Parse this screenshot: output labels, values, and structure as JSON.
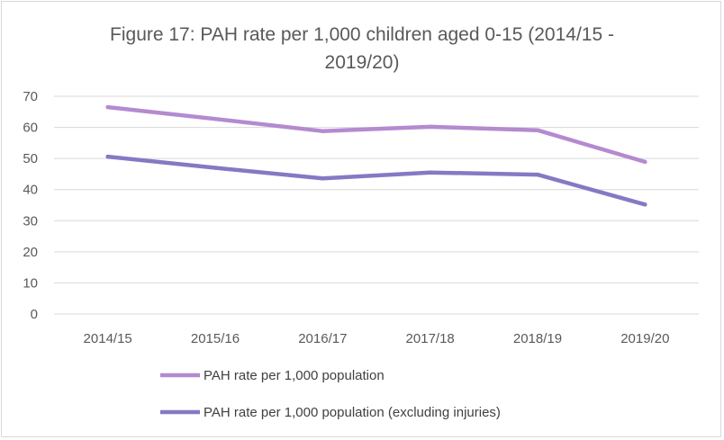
{
  "chart_data": {
    "type": "line",
    "title_line1": "Figure 17: PAH rate per 1,000 children aged 0-15 (2014/15 -",
    "title_line2": "2019/20)",
    "categories": [
      "2014/15",
      "2015/16",
      "2016/17",
      "2017/18",
      "2018/19",
      "2019/20"
    ],
    "ylim": [
      0,
      70
    ],
    "yticks": [
      0,
      10,
      20,
      30,
      40,
      50,
      60,
      70
    ],
    "grid": true,
    "legend_position": "bottom",
    "series": [
      {
        "name": "PAH rate per 1,000 population",
        "color": "#b48ad0",
        "values": [
          66.5,
          62.7,
          58.8,
          60.2,
          59.1,
          48.9
        ]
      },
      {
        "name": "PAH rate per 1,000 population (excluding injuries)",
        "color": "#8579c4",
        "values": [
          50.6,
          47.0,
          43.6,
          45.5,
          44.8,
          35.2
        ]
      }
    ]
  }
}
